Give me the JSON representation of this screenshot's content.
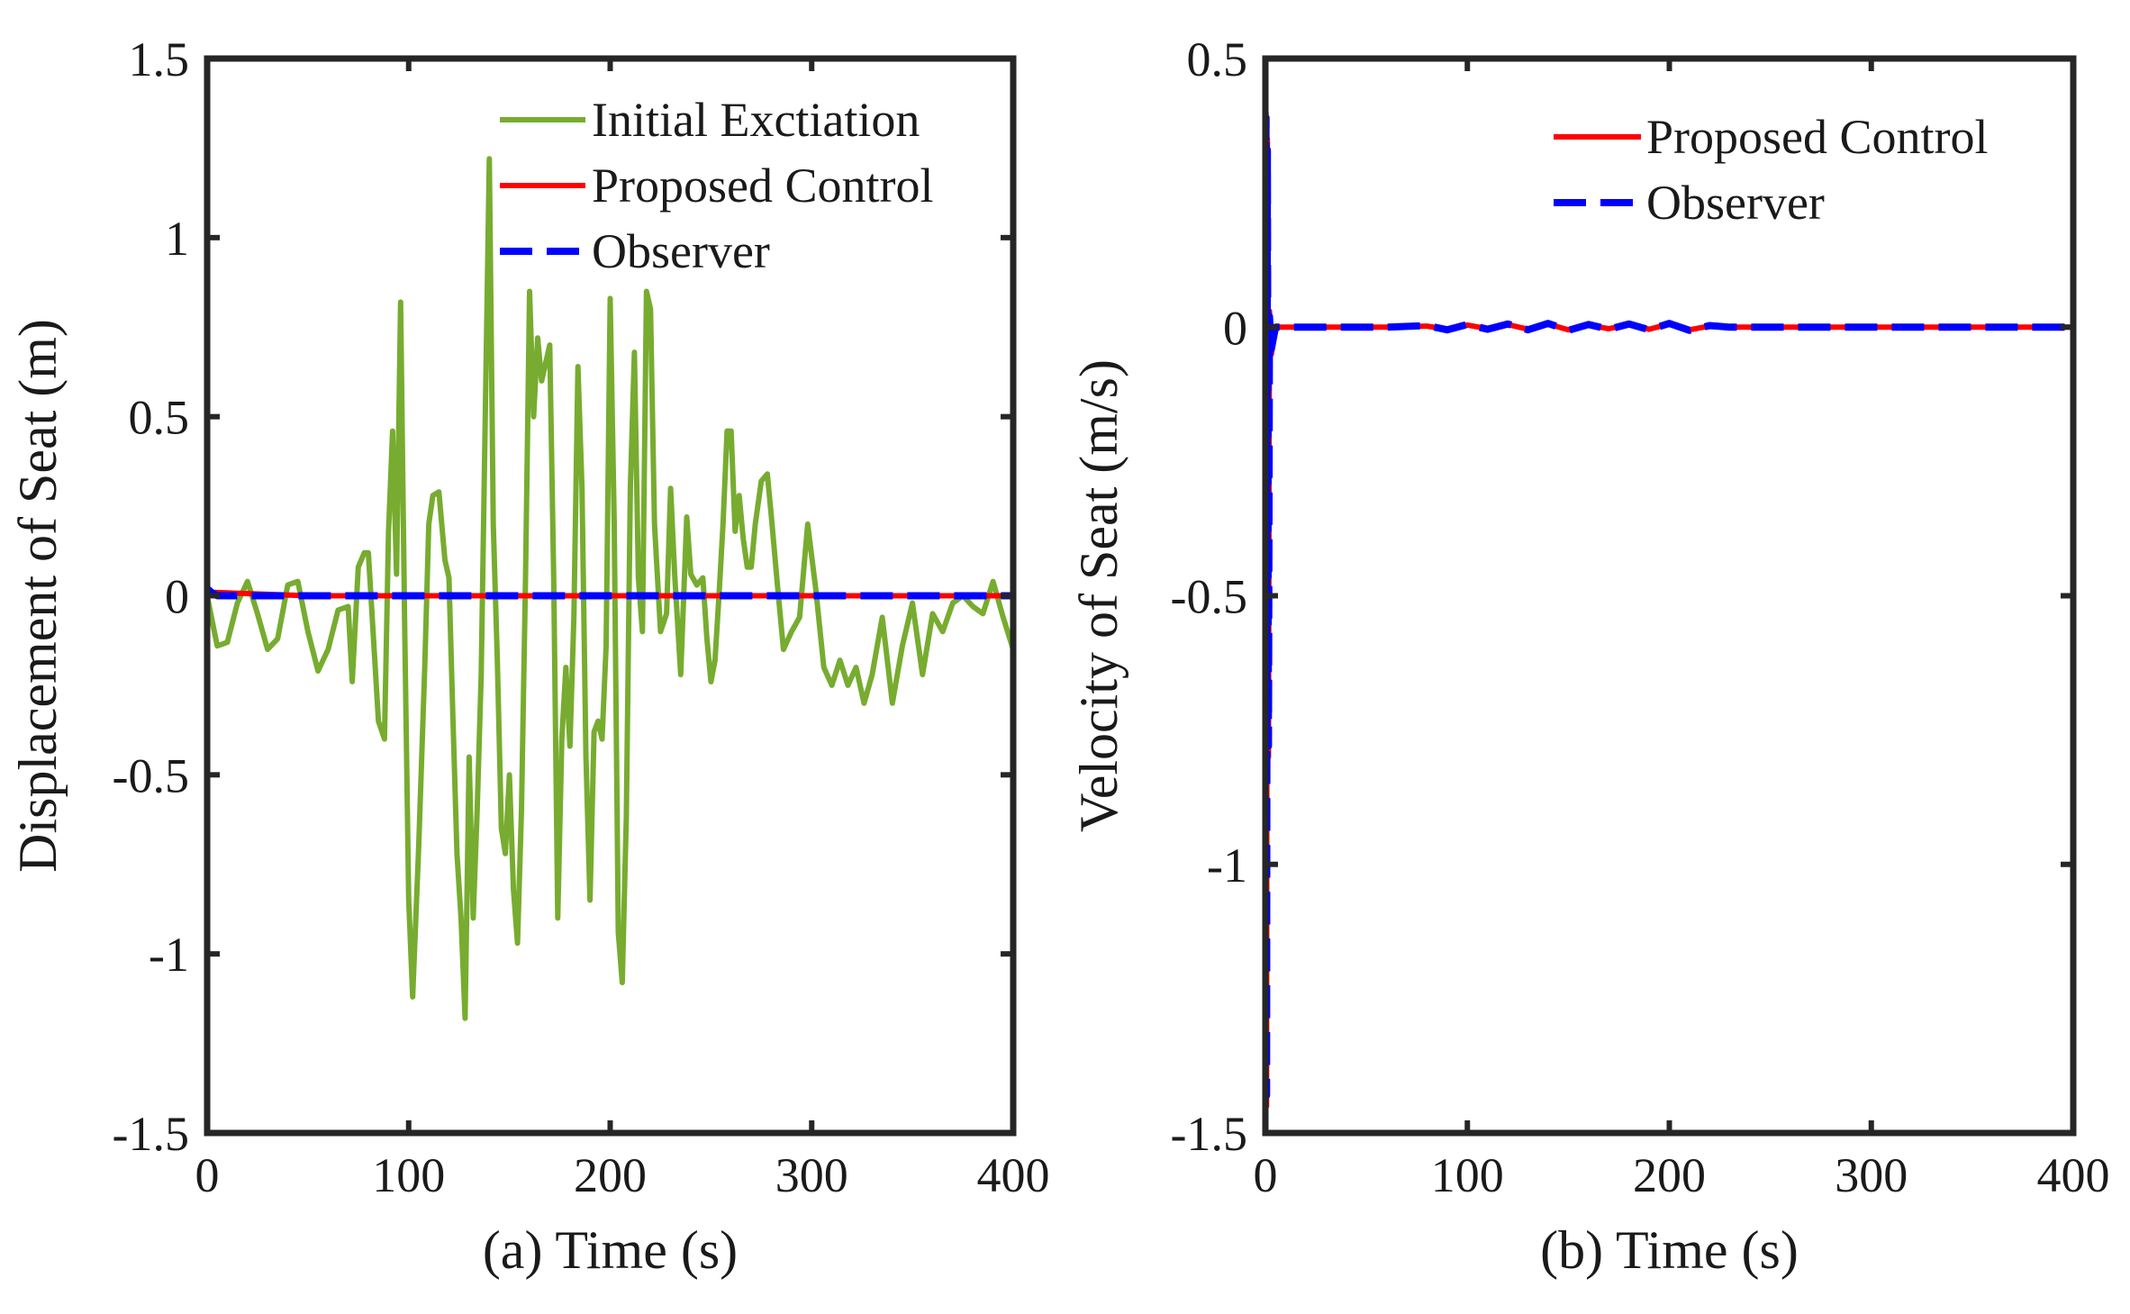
{
  "chart_data": [
    {
      "type": "line",
      "xlabel": "(a) Time (s)",
      "ylabel": "Displacement of Seat (m)",
      "xlim": [
        0,
        400
      ],
      "ylim": [
        -1.5,
        1.5
      ],
      "xticks": [
        "0",
        "100",
        "200",
        "300",
        "400"
      ],
      "yticks": [
        "-1.5",
        "-1",
        "-0.5",
        "0",
        "0.5",
        "1",
        "1.5"
      ],
      "legend_position": "top-right",
      "grid": false,
      "series": [
        {
          "name": "Initial Exctiation",
          "color": "#77ac30",
          "style": "solid",
          "x": [
            0,
            5,
            10,
            15,
            20,
            25,
            30,
            35,
            40,
            45,
            50,
            55,
            60,
            65,
            70,
            72,
            75,
            78,
            80,
            85,
            88,
            90,
            92,
            94,
            96,
            98,
            100,
            102,
            105,
            108,
            110,
            112,
            115,
            118,
            120,
            122,
            124,
            126,
            128,
            130,
            132,
            134,
            136,
            138,
            140,
            142,
            144,
            146,
            148,
            150,
            152,
            154,
            156,
            158,
            160,
            162,
            164,
            166,
            168,
            170,
            172,
            174,
            176,
            178,
            180,
            182,
            184,
            186,
            188,
            190,
            192,
            194,
            196,
            198,
            200,
            202,
            204,
            206,
            208,
            210,
            212,
            214,
            216,
            218,
            220,
            222,
            225,
            228,
            230,
            232,
            235,
            238,
            240,
            243,
            246,
            248,
            250,
            252,
            254,
            256,
            258,
            260,
            262,
            264,
            266,
            268,
            270,
            272,
            275,
            278,
            280,
            283,
            286,
            290,
            294,
            298,
            302,
            306,
            310,
            314,
            318,
            322,
            326,
            330,
            335,
            340,
            345,
            350,
            355,
            360,
            365,
            370,
            375,
            380,
            385,
            390,
            395,
            400
          ],
          "y": [
            0.0,
            -0.14,
            -0.13,
            -0.02,
            0.04,
            -0.05,
            -0.15,
            -0.12,
            0.03,
            0.04,
            -0.1,
            -0.21,
            -0.15,
            -0.04,
            -0.03,
            -0.24,
            0.08,
            0.12,
            0.12,
            -0.35,
            -0.4,
            0.18,
            0.46,
            0.06,
            0.82,
            -0.08,
            -0.85,
            -1.12,
            -0.7,
            -0.2,
            0.2,
            0.28,
            0.29,
            0.1,
            0.05,
            -0.35,
            -0.72,
            -0.9,
            -1.18,
            -0.45,
            -0.9,
            -0.6,
            -0.22,
            0.5,
            1.22,
            0.2,
            -0.18,
            -0.65,
            -0.72,
            -0.5,
            -0.82,
            -0.97,
            -0.6,
            0.05,
            0.85,
            0.5,
            0.72,
            0.6,
            0.65,
            0.7,
            0.05,
            -0.9,
            -0.4,
            -0.2,
            -0.42,
            -0.06,
            0.64,
            0.3,
            -0.45,
            -0.85,
            -0.38,
            -0.35,
            -0.4,
            -0.14,
            0.83,
            0.2,
            -0.94,
            -1.08,
            -0.62,
            0.3,
            0.68,
            0.05,
            -0.1,
            0.85,
            0.8,
            0.2,
            -0.1,
            -0.05,
            0.3,
            0.06,
            -0.22,
            0.22,
            0.06,
            0.03,
            0.05,
            -0.12,
            -0.24,
            -0.18,
            0.0,
            0.2,
            0.46,
            0.46,
            0.18,
            0.28,
            0.16,
            0.08,
            0.08,
            0.2,
            0.32,
            0.34,
            0.22,
            0.03,
            -0.15,
            -0.1,
            -0.06,
            0.2,
            0.02,
            -0.2,
            -0.25,
            -0.18,
            -0.25,
            -0.2,
            -0.3,
            -0.22,
            -0.06,
            -0.3,
            -0.14,
            -0.02,
            -0.22,
            -0.05,
            -0.1,
            -0.02,
            0.0,
            -0.03,
            -0.05,
            0.04,
            -0.06,
            -0.15
          ]
        },
        {
          "name": "Proposed Control",
          "color": "#ff0000",
          "style": "solid",
          "x": [
            0,
            50,
            100,
            150,
            200,
            250,
            300,
            350,
            400
          ],
          "y": [
            0.01,
            0.0,
            0.0,
            0.0,
            0.0,
            0.0,
            0.0,
            0.0,
            0.0
          ]
        },
        {
          "name": "Observer",
          "color": "#0000ff",
          "style": "dashed",
          "x": [
            0,
            2,
            5,
            50,
            100,
            150,
            200,
            250,
            300,
            350,
            400
          ],
          "y": [
            0.02,
            0.01,
            0.0,
            0.0,
            0.0,
            0.0,
            0.0,
            0.0,
            0.0,
            0.0,
            0.0
          ]
        }
      ]
    },
    {
      "type": "line",
      "xlabel": "(b) Time (s)",
      "ylabel": "Velocity of Seat (m/s)",
      "xlim": [
        0,
        400
      ],
      "ylim": [
        -1.5,
        0.5
      ],
      "xticks": [
        "0",
        "100",
        "200",
        "300",
        "400"
      ],
      "yticks": [
        "-1.5",
        "-1",
        "-0.5",
        "0",
        "0.5"
      ],
      "legend_position": "top-right",
      "grid": false,
      "series": [
        {
          "name": "Proposed Control",
          "color": "#ff0000",
          "style": "solid",
          "x": [
            0,
            0.3,
            0.6,
            1.0,
            1.5,
            2.0,
            3.0,
            5.0,
            10,
            60,
            80,
            90,
            100,
            110,
            120,
            130,
            140,
            150,
            160,
            170,
            180,
            190,
            200,
            210,
            220,
            230,
            250,
            300,
            350,
            400
          ],
          "y": [
            0.0,
            0.4,
            -1.45,
            0.35,
            -0.8,
            0.03,
            -0.05,
            0.0,
            0.0,
            0.0,
            0.002,
            -0.004,
            0.004,
            -0.003,
            0.005,
            -0.004,
            0.006,
            -0.005,
            0.004,
            -0.003,
            0.005,
            -0.004,
            0.006,
            -0.005,
            0.002,
            0.0,
            0.0,
            0.0,
            0.0,
            0.0
          ]
        },
        {
          "name": "Observer",
          "color": "#0000ff",
          "style": "dashed",
          "x": [
            0,
            0.3,
            0.6,
            1.0,
            1.5,
            2.0,
            3.0,
            5.0,
            10,
            60,
            80,
            90,
            100,
            110,
            120,
            130,
            140,
            150,
            160,
            170,
            180,
            190,
            200,
            210,
            220,
            230,
            250,
            300,
            350,
            400
          ],
          "y": [
            0.0,
            0.39,
            -1.43,
            0.33,
            -0.78,
            0.02,
            -0.04,
            0.0,
            0.0,
            0.0,
            0.003,
            -0.005,
            0.005,
            -0.004,
            0.006,
            -0.005,
            0.007,
            -0.006,
            0.005,
            -0.004,
            0.006,
            -0.005,
            0.007,
            -0.006,
            0.003,
            0.0,
            0.0,
            0.0,
            0.0,
            0.0
          ]
        }
      ]
    }
  ]
}
